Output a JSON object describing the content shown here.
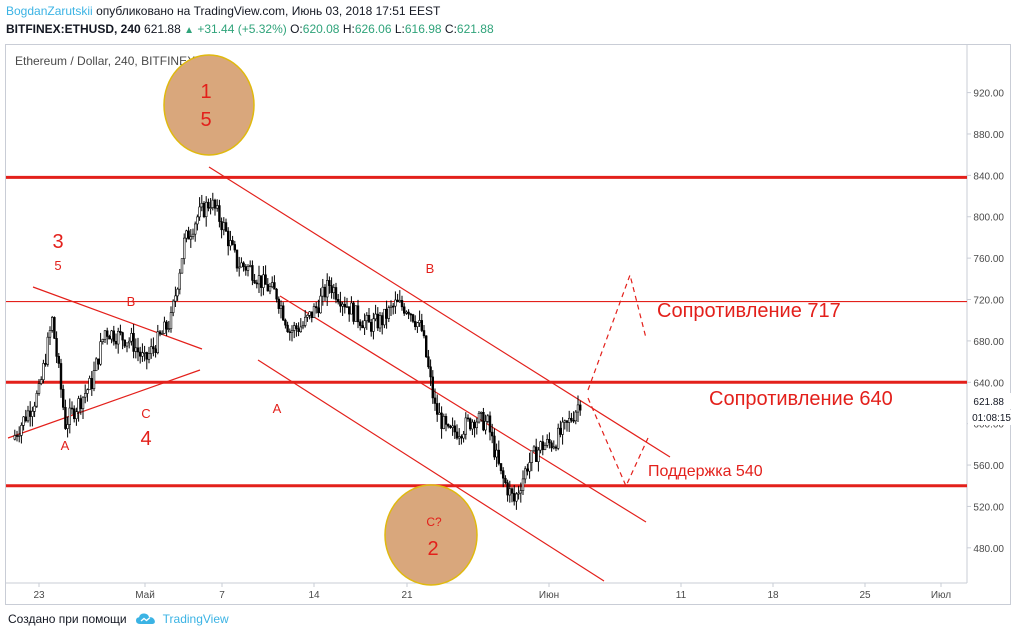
{
  "header": {
    "author": "BogdanZarutskii",
    "published": "опубликовано на TradingView.com, Июнь 03, 2018 17:51 EEST",
    "symbol": "BITFINEX:ETHUSD, 240",
    "last": "621.88",
    "change": "+31.44 (+5.32%)",
    "o_label": "O:",
    "o": "620.08",
    "h_label": "H:",
    "h": "626.06",
    "l_label": "L:",
    "l": "616.98",
    "c_label": "C:",
    "c": "621.88",
    "up_icon": "triangle-up-icon"
  },
  "footer": {
    "created_with": "Создано при помощи",
    "brand": "TradingView",
    "icon": "tradingview-cloud-icon"
  },
  "chart_data": {
    "type": "candlestick",
    "title": "Ethereum / Dollar, 240, BITFINEX",
    "price_axis_ticks": [
      "920.00",
      "880.00",
      "840.00",
      "800.00",
      "760.00",
      "720.00",
      "680.00",
      "640.00",
      "600.00",
      "560.00",
      "520.00",
      "480.00"
    ],
    "time_axis_ticks": [
      "23",
      "Май",
      "7",
      "14",
      "21",
      "Июн",
      "11",
      "18",
      "25",
      "Июл"
    ],
    "ylim": [
      446,
      966
    ],
    "current_price_label": "621.88",
    "countdown_label": "01:08:15",
    "grid": false,
    "close_series_approx": [
      {
        "date": "2018-04-21",
        "close": 585
      },
      {
        "date": "2018-04-23",
        "close": 630
      },
      {
        "date": "2018-04-24",
        "close": 700
      },
      {
        "date": "2018-04-25",
        "close": 600
      },
      {
        "date": "2018-04-27",
        "close": 640
      },
      {
        "date": "2018-04-28",
        "close": 690
      },
      {
        "date": "2018-04-30",
        "close": 680
      },
      {
        "date": "2018-05-01",
        "close": 660
      },
      {
        "date": "2018-05-03",
        "close": 700
      },
      {
        "date": "2018-05-04",
        "close": 775
      },
      {
        "date": "2018-05-05",
        "close": 800
      },
      {
        "date": "2018-05-06",
        "close": 815
      },
      {
        "date": "2018-05-07",
        "close": 790
      },
      {
        "date": "2018-05-08",
        "close": 755
      },
      {
        "date": "2018-05-09",
        "close": 750
      },
      {
        "date": "2018-05-10",
        "close": 735
      },
      {
        "date": "2018-05-11",
        "close": 725
      },
      {
        "date": "2018-05-12",
        "close": 690
      },
      {
        "date": "2018-05-13",
        "close": 695
      },
      {
        "date": "2018-05-14",
        "close": 712
      },
      {
        "date": "2018-05-15",
        "close": 735
      },
      {
        "date": "2018-05-16",
        "close": 720
      },
      {
        "date": "2018-05-17",
        "close": 705
      },
      {
        "date": "2018-05-18",
        "close": 695
      },
      {
        "date": "2018-05-19",
        "close": 700
      },
      {
        "date": "2018-05-20",
        "close": 715
      },
      {
        "date": "2018-05-21",
        "close": 712
      },
      {
        "date": "2018-05-22",
        "close": 690
      },
      {
        "date": "2018-05-23",
        "close": 615
      },
      {
        "date": "2018-05-24",
        "close": 590
      },
      {
        "date": "2018-05-25",
        "close": 595
      },
      {
        "date": "2018-05-26",
        "close": 605
      },
      {
        "date": "2018-05-27",
        "close": 600
      },
      {
        "date": "2018-05-28",
        "close": 550
      },
      {
        "date": "2018-05-29",
        "close": 525
      },
      {
        "date": "2018-05-30",
        "close": 560
      },
      {
        "date": "2018-05-31",
        "close": 578
      },
      {
        "date": "2018-06-01",
        "close": 582
      },
      {
        "date": "2018-06-02",
        "close": 598
      },
      {
        "date": "2018-06-03",
        "close": 621.88
      }
    ],
    "horizontal_levels": [
      {
        "price": 838,
        "style": "thick"
      },
      {
        "price": 718,
        "style": "thin"
      },
      {
        "price": 640,
        "style": "thick"
      },
      {
        "price": 540,
        "style": "thick"
      }
    ],
    "annotations": {
      "circle_top": [
        "1",
        "5"
      ],
      "circle_bottom": [
        "C?",
        "2"
      ],
      "wave_left_top_3": "3",
      "wave_left_top_5": "5",
      "wave_b_left": "B",
      "wave_c_left": "C",
      "wave_4_left": "4",
      "wave_a_left": "A",
      "wave_a_mid": "A",
      "wave_b_mid": "B",
      "resistance_717": "Сопротивление 717",
      "resistance_640": "Сопротивление 640",
      "support_540": "Поддержка 540"
    },
    "colors": {
      "annotation_red": "#e3201b",
      "circle_fill": "#d9a77c",
      "circle_stroke": "#e0b90f",
      "axis_text": "#4a4a4a",
      "price_tag_bg": "#ffffff"
    }
  }
}
